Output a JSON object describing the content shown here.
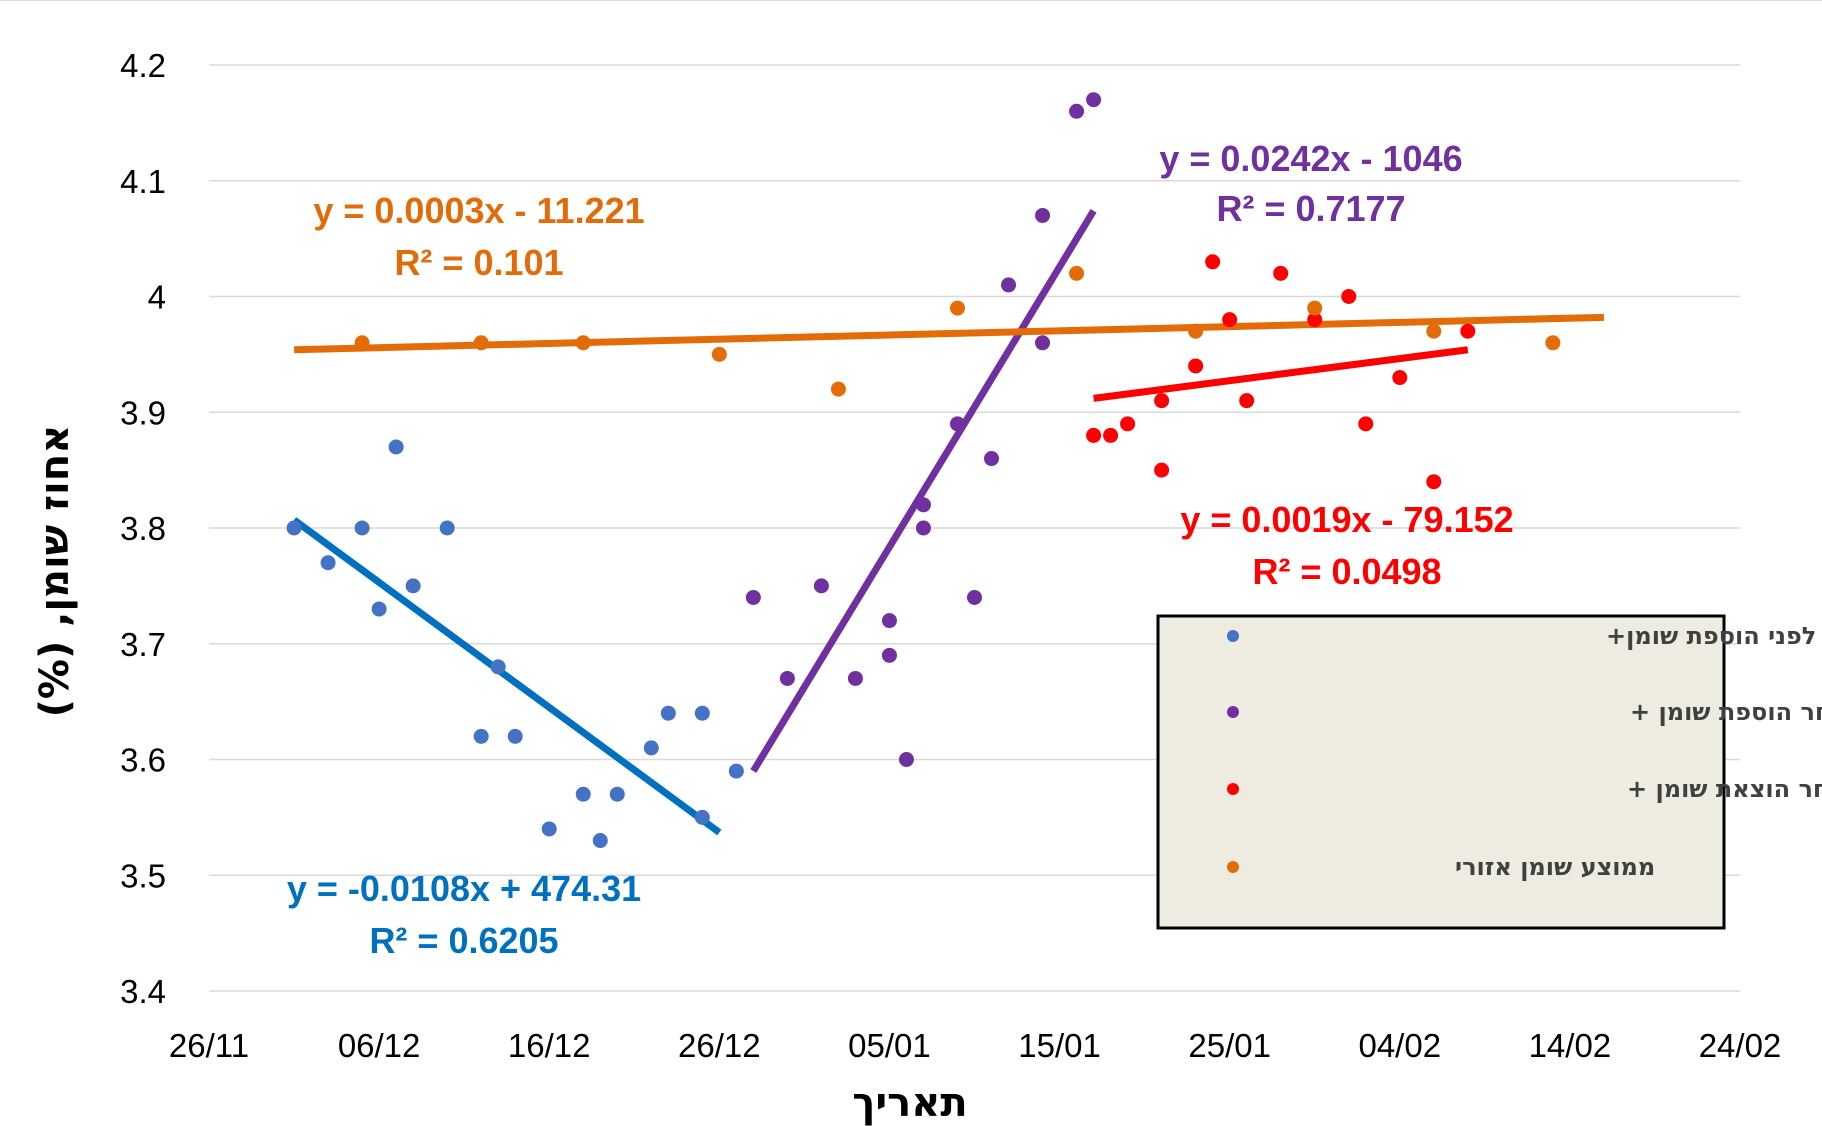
{
  "chart_data": {
    "type": "scatter",
    "xlabel": "תאריך",
    "ylabel": "אחוז שומן, (%)",
    "x_ticks": [
      "26/11",
      "06/12",
      "16/12",
      "26/12",
      "05/01",
      "15/01",
      "25/01",
      "04/02",
      "14/02",
      "24/02"
    ],
    "x_range": [
      "2019-11-26",
      "2020-02-24"
    ],
    "y_ticks": [
      "3.4",
      "3.5",
      "3.6",
      "3.7",
      "3.8",
      "3.9",
      "4",
      "4.1",
      "4.2"
    ],
    "ylim": [
      3.4,
      4.2
    ],
    "grid": "horizontal",
    "legend_position": "right-middle",
    "series": [
      {
        "name": "שומן רפת לפני הוספת שומן+",
        "color": "#4472C4",
        "trend_color": "#0070C0",
        "points": [
          [
            "2019-12-01",
            3.8
          ],
          [
            "2019-12-03",
            3.77
          ],
          [
            "2019-12-05",
            3.8
          ],
          [
            "2019-12-06",
            3.73
          ],
          [
            "2019-12-07",
            3.87
          ],
          [
            "2019-12-08",
            3.75
          ],
          [
            "2019-12-10",
            3.8
          ],
          [
            "2019-12-12",
            3.62
          ],
          [
            "2019-12-13",
            3.68
          ],
          [
            "2019-12-14",
            3.62
          ],
          [
            "2019-12-16",
            3.54
          ],
          [
            "2019-12-18",
            3.57
          ],
          [
            "2019-12-19",
            3.53
          ],
          [
            "2019-12-20",
            3.57
          ],
          [
            "2019-12-22",
            3.61
          ],
          [
            "2019-12-23",
            3.64
          ],
          [
            "2019-12-25",
            3.55
          ],
          [
            "2019-12-25",
            3.64
          ],
          [
            "2019-12-27",
            3.59
          ]
        ],
        "trendline": {
          "x": [
            "2019-12-01",
            "2019-12-26"
          ],
          "y": [
            3.807,
            3.537
          ]
        },
        "equation": "y = -0.0108x + 474.31",
        "r2": "R² = 0.6205"
      },
      {
        "name": "שומן רפת לאחר הוספת שומן +",
        "color": "#7030A0",
        "trend_color": "#7030A0",
        "points": [
          [
            "2019-12-28",
            3.74
          ],
          [
            "2019-12-30",
            3.67
          ],
          [
            "2020-01-01",
            3.75
          ],
          [
            "2020-01-03",
            3.67
          ],
          [
            "2020-01-05",
            3.72
          ],
          [
            "2020-01-05",
            3.69
          ],
          [
            "2020-01-06",
            3.6
          ],
          [
            "2020-01-07",
            3.82
          ],
          [
            "2020-01-07",
            3.8
          ],
          [
            "2020-01-09",
            3.89
          ],
          [
            "2020-01-10",
            3.74
          ],
          [
            "2020-01-11",
            3.86
          ],
          [
            "2020-01-12",
            4.01
          ],
          [
            "2020-01-14",
            4.07
          ],
          [
            "2020-01-14",
            3.96
          ],
          [
            "2020-01-16",
            4.16
          ],
          [
            "2020-01-17",
            4.17
          ]
        ],
        "trendline": {
          "x": [
            "2019-12-28",
            "2020-01-17"
          ],
          "y": [
            3.59,
            4.074
          ]
        },
        "equation": "y = 0.0242x - 1046",
        "r2": "R² = 0.7177"
      },
      {
        "name": "שומן רפת לאחר הוצאת שומן +",
        "color": "#FF0000",
        "trend_color": "#FF0000",
        "points": [
          [
            "2020-01-17",
            3.88
          ],
          [
            "2020-01-18",
            3.88
          ],
          [
            "2020-01-19",
            3.89
          ],
          [
            "2020-01-21",
            3.91
          ],
          [
            "2020-01-21",
            3.85
          ],
          [
            "2020-01-23",
            3.94
          ],
          [
            "2020-01-24",
            4.03
          ],
          [
            "2020-01-25",
            3.98
          ],
          [
            "2020-01-26",
            3.91
          ],
          [
            "2020-01-28",
            4.02
          ],
          [
            "2020-01-30",
            3.98
          ],
          [
            "2020-02-01",
            4.0
          ],
          [
            "2020-02-02",
            3.89
          ],
          [
            "2020-02-04",
            3.93
          ],
          [
            "2020-02-06",
            3.84
          ],
          [
            "2020-02-08",
            3.97
          ]
        ],
        "trendline": {
          "x": [
            "2020-01-17",
            "2020-02-08"
          ],
          "y": [
            3.912,
            3.954
          ]
        },
        "equation": "y = 0.0019x - 79.152",
        "r2": "R² = 0.0498"
      },
      {
        "name": "ממוצע שומן אזורי",
        "color": "#E36C09",
        "trend_color": "#E36C09",
        "points": [
          [
            "2019-12-05",
            3.96
          ],
          [
            "2019-12-12",
            3.96
          ],
          [
            "2019-12-18",
            3.96
          ],
          [
            "2019-12-26",
            3.95
          ],
          [
            "2020-01-02",
            3.92
          ],
          [
            "2020-01-09",
            3.99
          ],
          [
            "2020-01-16",
            4.02
          ],
          [
            "2020-01-23",
            3.97
          ],
          [
            "2020-01-30",
            3.99
          ],
          [
            "2020-02-06",
            3.97
          ],
          [
            "2020-02-13",
            3.96
          ]
        ],
        "trendline": {
          "x": [
            "2019-12-01",
            "2020-02-16"
          ],
          "y": [
            3.954,
            3.982
          ]
        },
        "equation": "y = 0.0003x - 11.221",
        "r2": "R² = 0.101"
      }
    ]
  }
}
